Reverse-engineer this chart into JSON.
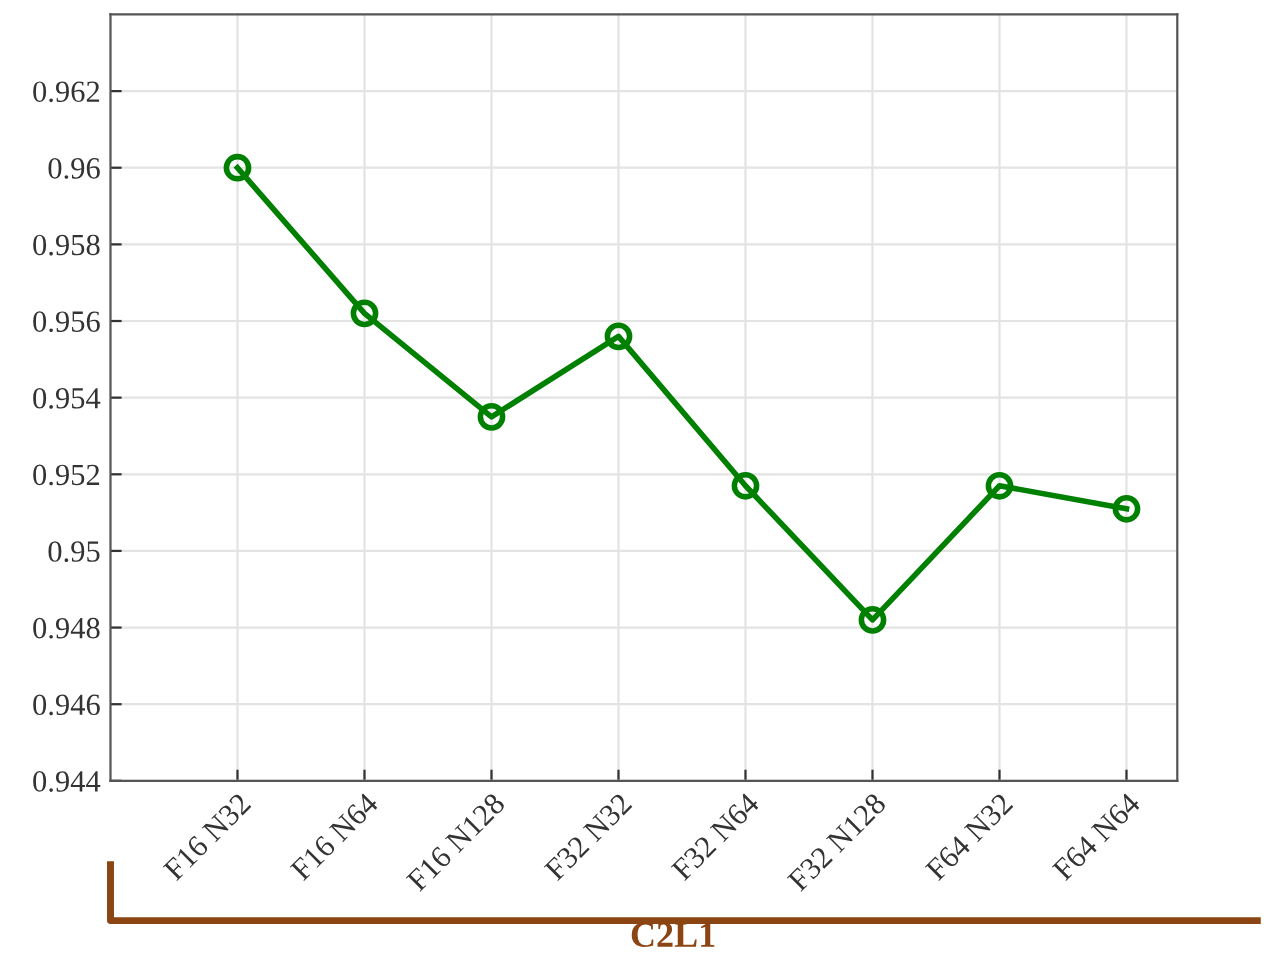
{
  "chart_data": {
    "type": "line",
    "categories": [
      "F16 N32",
      "F16 N64",
      "F16 N128",
      "F32 N32",
      "F32 N64",
      "F32 N128",
      "F64 N32",
      "F64 N64"
    ],
    "series": [
      {
        "color": "#008000",
        "values": [
          0.96,
          0.9562,
          0.9535,
          0.9556,
          0.9517,
          0.9482,
          0.9517,
          0.9511
        ]
      }
    ],
    "ylim": [
      0.944,
      0.964
    ],
    "yticks": [
      0.944,
      0.946,
      0.948,
      0.95,
      0.952,
      0.954,
      0.956,
      0.958,
      0.96,
      0.962
    ],
    "grid": true,
    "marker": "circle",
    "line_style": "solid",
    "legend": false,
    "annotations": [
      "C2L1"
    ]
  }
}
